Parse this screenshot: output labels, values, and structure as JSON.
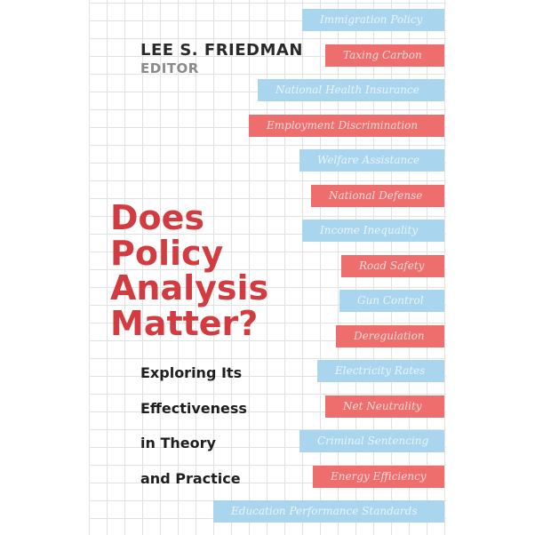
{
  "cover": {
    "author": "LEE S. FRIEDMAN",
    "role": "EDITOR",
    "title_lines": [
      "Does",
      "Policy",
      "Analysis",
      "Matter?"
    ],
    "subtitle_lines": [
      "Exploring Its",
      "Effectiveness",
      "in Theory",
      "and Practice"
    ],
    "topics": [
      "Immigration Policy",
      "Taxing Carbon",
      "National Health Insurance",
      "Employment Discrimination",
      "Welfare Assistance",
      "National Defense",
      "Income Inequality",
      "Road Safety",
      "Gun Control",
      "Deregulation",
      "Electricity Rates",
      "Net Neutrality",
      "Criminal Sentencing",
      "Energy Efficiency",
      "Education Performance Standards"
    ]
  }
}
